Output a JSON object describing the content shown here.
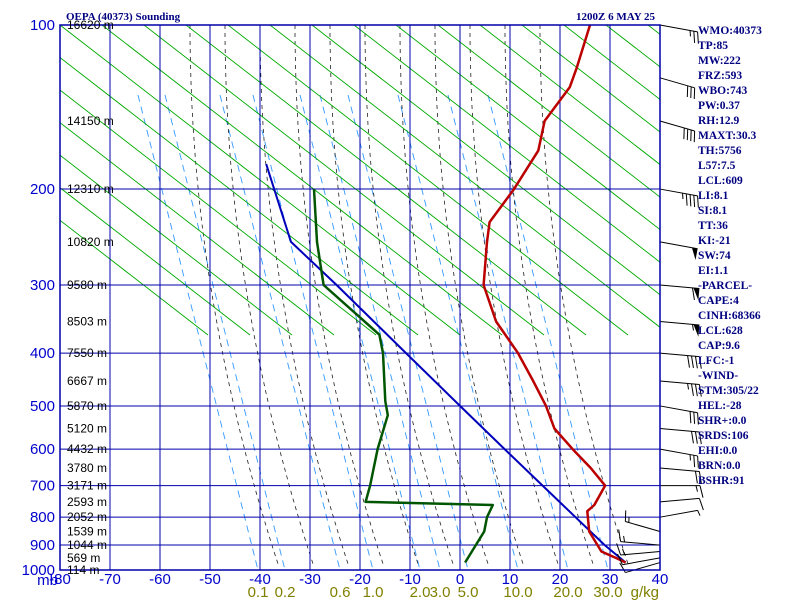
{
  "header": {
    "station": "OEPA (40373) Sounding",
    "time": "1200Z  6 MAY 25"
  },
  "indices": [
    "WMO:40373",
    "TP:85",
    "MW:222",
    "FRZ:593",
    "WBO:743",
    "PW:0.37",
    "RH:12.9",
    "MAXT:30.3",
    "TH:5756",
    "L57:7.5",
    "LCL:609",
    "LI:8.1",
    "SI:8.1",
    "TT:36",
    "KI:-21",
    "SW:74",
    "EI:1.1",
    "-PARCEL-",
    "CAPE:4",
    "CINH:68366",
    "LCL:628",
    "CAP:9.6",
    "LFC:-1",
    "-WIND-",
    "STM:305/22",
    "HEL:-28",
    "SHR+:0.0",
    "SRDS:106",
    "EHI:0.0",
    "BRN:0.0",
    "BSHR:91"
  ],
  "colors": {
    "frame": "#0000aa",
    "isotherm": "#0000aa",
    "dry_adiabat": "#00aa00",
    "moist_adiabat": "#222222",
    "mixing_ratio": "#3399ff",
    "temperature": "#bb0000",
    "dewpoint": "#005500",
    "parcel": "#0000bb",
    "wind_barb": "#000000"
  },
  "chart_data": {
    "type": "skew-t",
    "title": "OEPA (40373) Sounding",
    "y_unit_label": "mb",
    "pressure_ticks": [
      100,
      200,
      300,
      400,
      500,
      600,
      700,
      800,
      900,
      1000
    ],
    "temperature_ticks": [
      -80,
      -70,
      -60,
      -50,
      -40,
      -30,
      -20,
      -10,
      0,
      10,
      20,
      30,
      40
    ],
    "mixing_ratio_labels": [
      "0.1",
      "0.2",
      "0.6",
      "1.0",
      "2.0",
      "3.0",
      "5.0",
      "10.0",
      "20.0",
      "30.0"
    ],
    "mixing_ratio_unit": "g/kg",
    "grid": true,
    "height_labels": [
      "16620 m",
      "14150 m",
      "12310 m",
      "10820 m",
      "9580 m",
      "8503 m",
      "7550 m",
      "6667 m",
      "5870 m",
      "5120 m",
      "4432 m",
      "3780 m",
      "3171 m",
      "2593 m",
      "2052 m",
      "1539 m",
      "1044 m",
      "569 m",
      "114 m"
    ],
    "height_label_pressures": [
      100,
      150,
      200,
      250,
      300,
      350,
      400,
      450,
      500,
      550,
      600,
      650,
      700,
      750,
      800,
      850,
      900,
      950,
      1000
    ],
    "temperature_profile": [
      {
        "p": 969,
        "t": 31.8
      },
      {
        "p": 950,
        "t": 29
      },
      {
        "p": 925,
        "t": 25
      },
      {
        "p": 850,
        "t": 19
      },
      {
        "p": 780,
        "t": 15
      },
      {
        "p": 760,
        "t": 15.3
      },
      {
        "p": 700,
        "t": 14
      },
      {
        "p": 650,
        "t": 8
      },
      {
        "p": 600,
        "t": 1
      },
      {
        "p": 550,
        "t": -6.3
      },
      {
        "p": 500,
        "t": -12
      },
      {
        "p": 450,
        "t": -19
      },
      {
        "p": 400,
        "t": -27
      },
      {
        "p": 350,
        "t": -37
      },
      {
        "p": 300,
        "t": -46
      },
      {
        "p": 250,
        "t": -53
      },
      {
        "p": 230,
        "t": -56
      },
      {
        "p": 200,
        "t": -57
      },
      {
        "p": 170,
        "t": -59
      },
      {
        "p": 150,
        "t": -63
      },
      {
        "p": 130,
        "t": -64
      },
      {
        "p": 120,
        "t": -66
      },
      {
        "p": 100,
        "t": -71
      }
    ],
    "dewpoint_profile": [
      {
        "p": 969,
        "t": -0.3
      },
      {
        "p": 850,
        "t": -2
      },
      {
        "p": 800,
        "t": -4
      },
      {
        "p": 760,
        "t": -5
      },
      {
        "p": 750,
        "t": -31
      },
      {
        "p": 700,
        "t": -33
      },
      {
        "p": 600,
        "t": -38
      },
      {
        "p": 520,
        "t": -42
      },
      {
        "p": 490,
        "t": -45
      },
      {
        "p": 400,
        "t": -54
      },
      {
        "p": 370,
        "t": -58
      },
      {
        "p": 300,
        "t": -78
      },
      {
        "p": 250,
        "t": -87
      },
      {
        "p": 200,
        "t": -97
      }
    ],
    "parcel_profile": [
      {
        "p": 969,
        "t": 31.8
      },
      {
        "p": 900,
        "t": 24.5
      },
      {
        "p": 800,
        "t": 13.7
      },
      {
        "p": 700,
        "t": 1.5
      },
      {
        "p": 600,
        "t": -12.6
      },
      {
        "p": 500,
        "t": -29.2
      },
      {
        "p": 400,
        "t": -49.4
      },
      {
        "p": 300,
        "t": -75.4
      },
      {
        "p": 250,
        "t": -92.2
      },
      {
        "p": 180,
        "t": -111
      }
    ],
    "wind_barbs": [
      {
        "p": 969,
        "dir": 60,
        "spd": 10
      },
      {
        "p": 950,
        "dir": 70,
        "spd": 10
      },
      {
        "p": 925,
        "dir": 80,
        "spd": 15
      },
      {
        "p": 900,
        "dir": 100,
        "spd": 15
      },
      {
        "p": 850,
        "dir": 120,
        "spd": 15
      },
      {
        "p": 800,
        "dir": 250,
        "spd": 5
      },
      {
        "p": 750,
        "dir": 260,
        "spd": 10
      },
      {
        "p": 700,
        "dir": 270,
        "spd": 15
      },
      {
        "p": 650,
        "dir": 280,
        "spd": 20
      },
      {
        "p": 600,
        "dir": 290,
        "spd": 25
      },
      {
        "p": 550,
        "dir": 280,
        "spd": 30
      },
      {
        "p": 500,
        "dir": 290,
        "spd": 30
      },
      {
        "p": 450,
        "dir": 280,
        "spd": 35
      },
      {
        "p": 400,
        "dir": 280,
        "spd": 40
      },
      {
        "p": 350,
        "dir": 280,
        "spd": 55
      },
      {
        "p": 300,
        "dir": 280,
        "spd": 60
      },
      {
        "p": 250,
        "dir": 290,
        "spd": 50
      },
      {
        "p": 200,
        "dir": 290,
        "spd": 45
      },
      {
        "p": 150,
        "dir": 300,
        "spd": 40
      },
      {
        "p": 125,
        "dir": 300,
        "spd": 30
      },
      {
        "p": 100,
        "dir": 290,
        "spd": 25
      }
    ]
  }
}
